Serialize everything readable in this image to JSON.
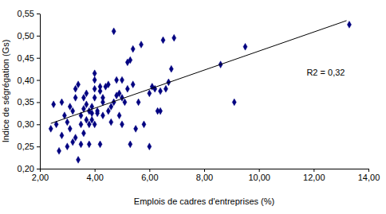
{
  "chart_data": {
    "type": "scatter",
    "x_label": "Emplois de cadres d'entreprises (%)",
    "y_label": "Indice de ségrégation (Gs)",
    "annotations": [
      "R2 = 0,32"
    ],
    "xlim": [
      2,
      14
    ],
    "ylim": [
      0.2,
      0.55
    ],
    "xticks": [
      {
        "value": 2,
        "label": "2,00"
      },
      {
        "value": 4,
        "label": "4,00"
      },
      {
        "value": 6,
        "label": "6,00"
      },
      {
        "value": 8,
        "label": "8,00"
      },
      {
        "value": 10,
        "label": "10,00"
      },
      {
        "value": 12,
        "label": "12,00"
      },
      {
        "value": 14,
        "label": "14,00"
      }
    ],
    "yticks": [
      {
        "value": 0.2,
        "label": "0,20"
      },
      {
        "value": 0.25,
        "label": "0,25"
      },
      {
        "value": 0.3,
        "label": "0,30"
      },
      {
        "value": 0.35,
        "label": "0,35"
      },
      {
        "value": 0.4,
        "label": "0,40"
      },
      {
        "value": 0.45,
        "label": "0,45"
      },
      {
        "value": 0.5,
        "label": "0,50"
      },
      {
        "value": 0.55,
        "label": "0,55"
      }
    ],
    "grid": false,
    "series": [
      {
        "type": "scatter",
        "color": "#000080",
        "marker": "diamond",
        "x": [
          2.4,
          2.5,
          2.6,
          2.7,
          2.8,
          2.8,
          2.9,
          3.0,
          3.0,
          3.1,
          3.1,
          3.2,
          3.2,
          3.3,
          3.3,
          3.3,
          3.4,
          3.4,
          3.5,
          3.5,
          3.5,
          3.6,
          3.6,
          3.6,
          3.7,
          3.7,
          3.7,
          3.8,
          3.8,
          3.8,
          3.9,
          3.9,
          3.9,
          4.0,
          4.0,
          4.0,
          4.0,
          4.0,
          4.1,
          4.1,
          4.2,
          4.2,
          4.2,
          4.3,
          4.3,
          4.3,
          4.4,
          4.5,
          4.5,
          4.6,
          4.6,
          4.7,
          4.7,
          4.8,
          4.8,
          4.9,
          4.9,
          5.0,
          5.0,
          5.0,
          5.1,
          5.2,
          5.2,
          5.3,
          5.3,
          5.4,
          5.4,
          5.5,
          5.6,
          5.7,
          5.8,
          6.0,
          6.0,
          6.1,
          6.2,
          6.3,
          6.4,
          6.4,
          6.5,
          6.6,
          6.7,
          6.8,
          6.9,
          8.6,
          9.1,
          9.5,
          13.3
        ],
        "values": [
          0.29,
          0.345,
          0.3,
          0.24,
          0.35,
          0.275,
          0.32,
          0.25,
          0.305,
          0.29,
          0.34,
          0.26,
          0.33,
          0.36,
          0.38,
          0.27,
          0.39,
          0.22,
          0.3,
          0.32,
          0.255,
          0.36,
          0.335,
          0.28,
          0.37,
          0.31,
          0.345,
          0.3,
          0.33,
          0.255,
          0.325,
          0.31,
          0.34,
          0.36,
          0.38,
          0.415,
          0.4,
          0.3,
          0.33,
          0.325,
          0.385,
          0.375,
          0.255,
          0.36,
          0.32,
          0.35,
          0.385,
          0.39,
          0.33,
          0.305,
          0.34,
          0.51,
          0.35,
          0.365,
          0.4,
          0.37,
          0.32,
          0.4,
          0.3,
          0.36,
          0.35,
          0.44,
          0.38,
          0.445,
          0.255,
          0.39,
          0.47,
          0.29,
          0.35,
          0.48,
          0.3,
          0.25,
          0.37,
          0.385,
          0.38,
          0.33,
          0.33,
          0.375,
          0.49,
          0.38,
          0.395,
          0.425,
          0.495,
          0.435,
          0.35,
          0.475,
          0.525
        ]
      },
      {
        "type": "line",
        "color": "#000000",
        "line_style": "solid",
        "x": [
          2.4,
          13.2
        ],
        "values": [
          0.302,
          0.534
        ]
      }
    ]
  }
}
